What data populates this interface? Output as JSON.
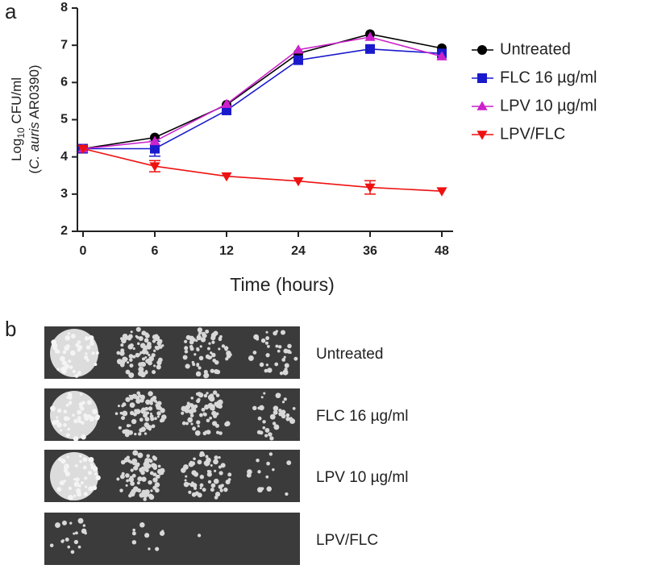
{
  "panel_labels": [
    "a",
    "b"
  ],
  "chart_data": {
    "type": "line",
    "ylabel": [
      "Log",
      "10",
      " CFU/ml"
    ],
    "ylabel2": [
      "(",
      "C. auris",
      " AR0390)"
    ],
    "xlabel": "Time (hours)",
    "categories": [
      "0",
      "6",
      "12",
      "24",
      "36",
      "48"
    ],
    "ylim": [
      2,
      8
    ],
    "yticks": [
      2,
      3,
      4,
      5,
      6,
      7,
      8
    ],
    "legend": "right",
    "series": [
      {
        "name": "Untreated",
        "color": "#000000",
        "marker": "circle",
        "values": [
          4.22,
          4.52,
          5.4,
          6.78,
          7.3,
          6.92
        ],
        "errors": [
          null,
          null,
          null,
          null,
          null,
          null
        ]
      },
      {
        "name": "FLC 16 µg/ml",
        "color": "#1a1acc",
        "marker": "square",
        "values": [
          4.22,
          4.22,
          5.25,
          6.6,
          6.9,
          6.78
        ],
        "errors": [
          null,
          0.2,
          null,
          null,
          null,
          null
        ]
      },
      {
        "name": "LPV 10 µg/ml",
        "color": "#cc22cc",
        "marker": "triangle-up",
        "values": [
          4.22,
          4.42,
          5.42,
          6.88,
          7.22,
          6.7
        ],
        "errors": [
          null,
          null,
          null,
          null,
          null,
          null
        ]
      },
      {
        "name": "LPV/FLC",
        "color": "#ee1111",
        "marker": "triangle-down",
        "values": [
          4.22,
          3.75,
          3.48,
          3.35,
          3.18,
          3.08
        ],
        "errors": [
          null,
          0.15,
          null,
          null,
          0.18,
          null
        ]
      }
    ]
  },
  "spot_assay": {
    "rows": [
      "Untreated",
      "FLC 16 µg/ml",
      "LPV 10 µg/ml",
      "LPV/FLC"
    ]
  }
}
